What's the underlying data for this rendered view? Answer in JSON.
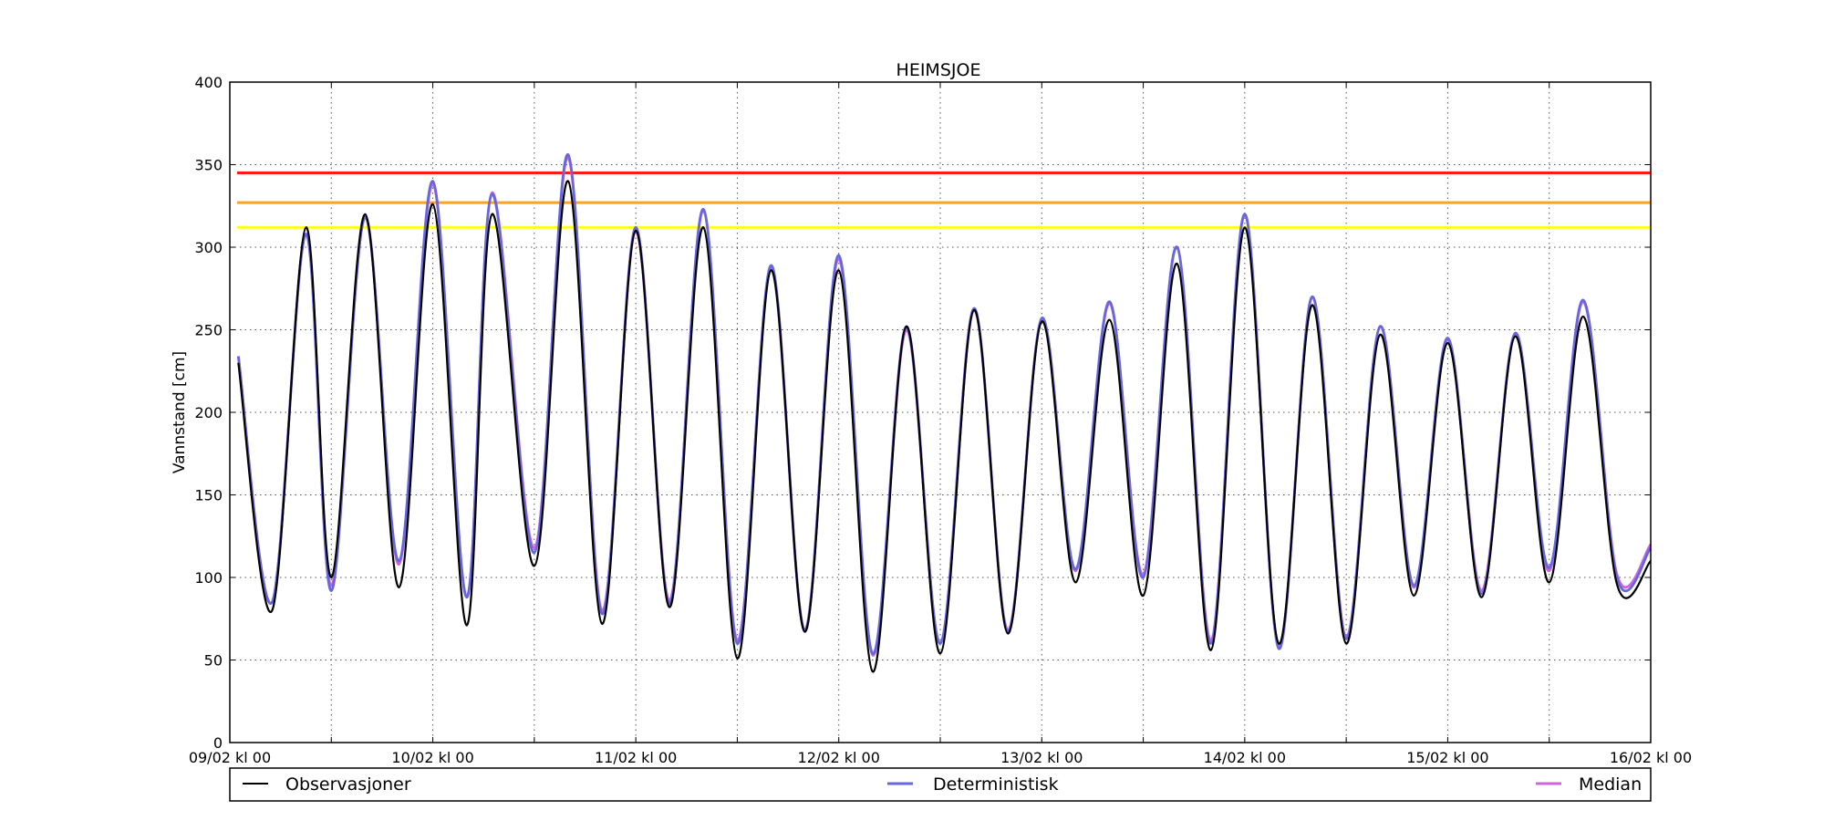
{
  "chart_data": {
    "type": "line",
    "title": "HEIMSJOE",
    "ylabel": "Vannstand [cm]",
    "xlabel": "",
    "ylim": [
      0,
      400
    ],
    "xlim": [
      0,
      168
    ],
    "yticks": [
      0,
      50,
      100,
      150,
      200,
      250,
      300,
      350,
      400
    ],
    "xticks": [
      {
        "x": 0,
        "label": "09/02 kl 00"
      },
      {
        "x": 12,
        "label": ""
      },
      {
        "x": 24,
        "label": "10/02 kl 00"
      },
      {
        "x": 36,
        "label": ""
      },
      {
        "x": 48,
        "label": "11/02 kl 00"
      },
      {
        "x": 60,
        "label": ""
      },
      {
        "x": 72,
        "label": "12/02 kl 00"
      },
      {
        "x": 84,
        "label": ""
      },
      {
        "x": 96,
        "label": "13/02 kl 00"
      },
      {
        "x": 108,
        "label": ""
      },
      {
        "x": 120,
        "label": "14/02 kl 00"
      },
      {
        "x": 132,
        "label": ""
      },
      {
        "x": 144,
        "label": "15/02 kl 00"
      },
      {
        "x": 156,
        "label": ""
      },
      {
        "x": 168,
        "label": "16/02 kl 00"
      }
    ],
    "x_unit": "hours after 09/02 kl 00",
    "grid": true,
    "legend_position": "bottom",
    "thresholds": [
      {
        "value": 345,
        "color": "#ff1a1a"
      },
      {
        "value": 327,
        "color": "#ffa31a"
      },
      {
        "value": 312,
        "color": "#ffff1a"
      }
    ],
    "series": [
      {
        "name": "Median",
        "color": "#cc66dd",
        "x": [
          1,
          5,
          9,
          12,
          16,
          20,
          24,
          28,
          31,
          36,
          40,
          44,
          48,
          52,
          56,
          60,
          64,
          68,
          72,
          76,
          80,
          84,
          88,
          92,
          96,
          100,
          104,
          108,
          112,
          116,
          120,
          124,
          128,
          132,
          136,
          140,
          144,
          148,
          152,
          156,
          160,
          164,
          168
        ],
        "values": [
          234,
          85,
          308,
          95,
          318,
          108,
          338,
          88,
          333,
          118,
          354,
          80,
          310,
          86,
          322,
          62,
          287,
          68,
          293,
          53,
          250,
          60,
          262,
          68,
          256,
          104,
          266,
          102,
          300,
          62,
          320,
          58,
          270,
          64,
          252,
          94,
          244,
          92,
          247,
          104,
          267,
          102,
          120
        ]
      },
      {
        "name": "Deterministisk",
        "color": "#6666dd",
        "x": [
          1,
          5,
          9,
          12,
          16,
          20,
          24,
          28,
          31,
          36,
          40,
          44,
          48,
          52,
          56,
          60,
          64,
          68,
          72,
          76,
          80,
          84,
          88,
          92,
          96,
          100,
          104,
          108,
          112,
          116,
          120,
          124,
          128,
          132,
          136,
          140,
          144,
          148,
          152,
          156,
          160,
          164,
          168
        ],
        "values": [
          234,
          85,
          308,
          92,
          318,
          110,
          340,
          88,
          332,
          115,
          356,
          78,
          312,
          84,
          323,
          60,
          289,
          68,
          295,
          54,
          252,
          60,
          263,
          67,
          257,
          105,
          267,
          100,
          300,
          60,
          320,
          57,
          270,
          63,
          252,
          95,
          245,
          90,
          248,
          106,
          268,
          100,
          118
        ]
      },
      {
        "name": "Observasjoner",
        "color": "#000000",
        "x": [
          1,
          5,
          9,
          12,
          16,
          20,
          24,
          28,
          31,
          36,
          40,
          44,
          48,
          52,
          56,
          60,
          64,
          68,
          72,
          76,
          80,
          84,
          88,
          92,
          96,
          100,
          104,
          108,
          112,
          116,
          120,
          124,
          128,
          132,
          136,
          140,
          144,
          148,
          152,
          156,
          160,
          164,
          168
        ],
        "values": [
          230,
          80,
          312,
          100,
          320,
          94,
          326,
          71,
          320,
          107,
          340,
          72,
          310,
          82,
          312,
          51,
          286,
          67,
          286,
          43,
          252,
          54,
          262,
          66,
          255,
          97,
          256,
          89,
          290,
          56,
          312,
          60,
          265,
          60,
          247,
          89,
          242,
          88,
          246,
          97,
          258,
          96,
          110
        ]
      }
    ]
  },
  "legend": {
    "items": [
      {
        "label": "Observasjoner",
        "color": "#000000"
      },
      {
        "label": "Deterministisk",
        "color": "#6666dd"
      },
      {
        "label": "Median",
        "color": "#cc66dd"
      }
    ]
  }
}
